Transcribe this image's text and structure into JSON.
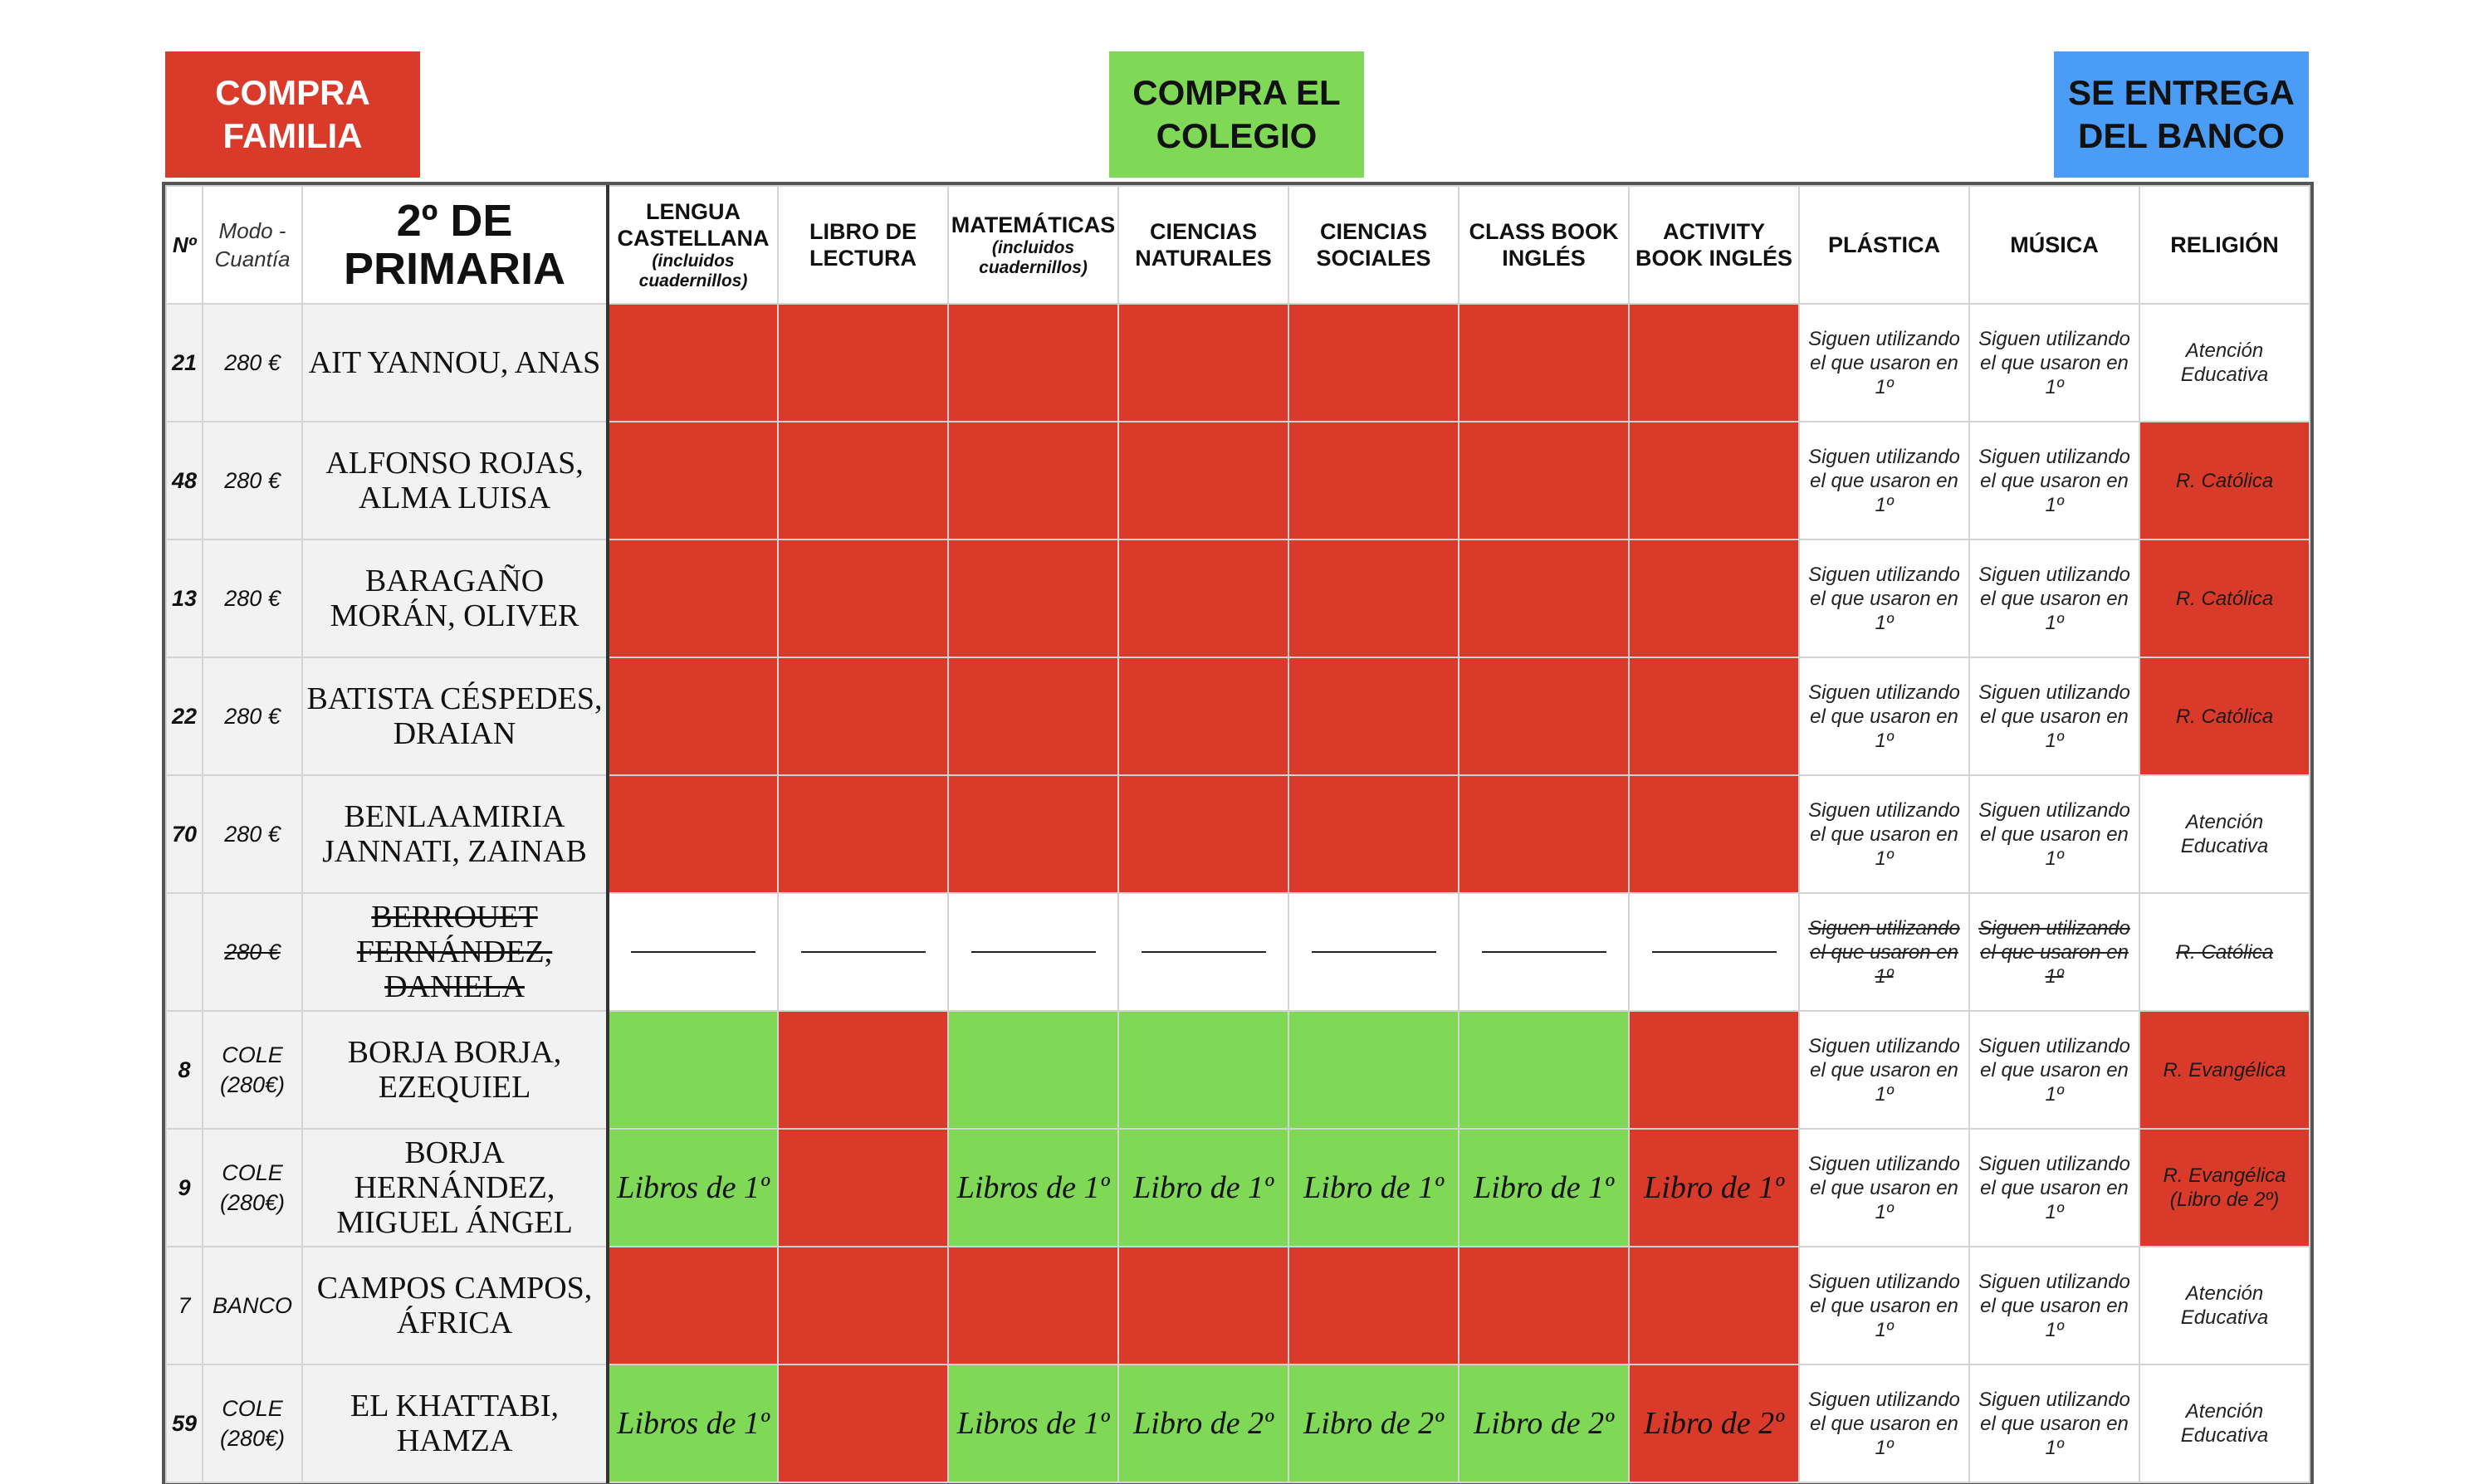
{
  "legend": {
    "familia": "COMPRA FAMILIA",
    "colegio": "COMPRA EL COLEGIO",
    "banco": "SE ENTREGA DEL BANCO"
  },
  "colors": {
    "familia": "#d93a29",
    "colegio": "#7fd957",
    "banco": "#4a9cf5"
  },
  "header": {
    "num": "Nº",
    "modo": "Modo - Cuantía",
    "title": "2º DE PRIMARIA",
    "subjects": [
      {
        "label": "LENGUA CASTELLANA",
        "sub": "(incluidos cuadernillos)"
      },
      {
        "label": "LIBRO DE LECTURA",
        "sub": ""
      },
      {
        "label": "MATEMÁTICAS",
        "sub": "(incluidos cuadernillos)"
      },
      {
        "label": "CIENCIAS NATURALES",
        "sub": ""
      },
      {
        "label": "CIENCIAS SOCIALES",
        "sub": ""
      },
      {
        "label": "CLASS BOOK INGLÉS",
        "sub": ""
      },
      {
        "label": "ACTIVITY BOOK INGLÉS",
        "sub": ""
      },
      {
        "label": "PLÁSTICA",
        "sub": ""
      },
      {
        "label": "MÚSICA",
        "sub": ""
      },
      {
        "label": "RELIGIÓN",
        "sub": ""
      }
    ]
  },
  "rows": [
    {
      "num": "21",
      "modo": "280 €",
      "name": "AIT YANNOU, ANAS",
      "books": [
        {
          "c": "r",
          "t": ""
        },
        {
          "c": "r",
          "t": ""
        },
        {
          "c": "r",
          "t": ""
        },
        {
          "c": "r",
          "t": ""
        },
        {
          "c": "r",
          "t": ""
        },
        {
          "c": "r",
          "t": ""
        },
        {
          "c": "r",
          "t": ""
        }
      ],
      "plastica": "Siguen utilizando el que usaron en 1º",
      "musica": "Siguen utilizando el que usaron en 1º",
      "religion": {
        "c": "w",
        "t": "Atención Educativa"
      }
    },
    {
      "num": "48",
      "modo": "280 €",
      "name": "ALFONSO ROJAS, ALMA LUISA",
      "books": [
        {
          "c": "r",
          "t": ""
        },
        {
          "c": "r",
          "t": ""
        },
        {
          "c": "r",
          "t": ""
        },
        {
          "c": "r",
          "t": ""
        },
        {
          "c": "r",
          "t": ""
        },
        {
          "c": "r",
          "t": ""
        },
        {
          "c": "r",
          "t": ""
        }
      ],
      "plastica": "Siguen utilizando el que usaron en 1º",
      "musica": "Siguen utilizando el que usaron en 1º",
      "religion": {
        "c": "r",
        "t": "R. Católica"
      }
    },
    {
      "num": "13",
      "modo": "280 €",
      "name": "BARAGAÑO MORÁN, OLIVER",
      "books": [
        {
          "c": "r",
          "t": ""
        },
        {
          "c": "r",
          "t": ""
        },
        {
          "c": "r",
          "t": ""
        },
        {
          "c": "r",
          "t": ""
        },
        {
          "c": "r",
          "t": ""
        },
        {
          "c": "r",
          "t": ""
        },
        {
          "c": "r",
          "t": ""
        }
      ],
      "plastica": "Siguen utilizando el que usaron en 1º",
      "musica": "Siguen utilizando el que usaron en 1º",
      "religion": {
        "c": "r",
        "t": "R. Católica"
      }
    },
    {
      "num": "22",
      "modo": "280 €",
      "name": "BATISTA CÉSPEDES, DRAIAN",
      "books": [
        {
          "c": "r",
          "t": ""
        },
        {
          "c": "r",
          "t": ""
        },
        {
          "c": "r",
          "t": ""
        },
        {
          "c": "r",
          "t": ""
        },
        {
          "c": "r",
          "t": ""
        },
        {
          "c": "r",
          "t": ""
        },
        {
          "c": "r",
          "t": ""
        }
      ],
      "plastica": "Siguen utilizando el que usaron en 1º",
      "musica": "Siguen utilizando el que usaron en 1º",
      "religion": {
        "c": "r",
        "t": "R. Católica"
      }
    },
    {
      "num": "70",
      "modo": "280 €",
      "name": "BENLAAMIRIA JANNATI, ZAINAB",
      "books": [
        {
          "c": "r",
          "t": ""
        },
        {
          "c": "r",
          "t": ""
        },
        {
          "c": "r",
          "t": ""
        },
        {
          "c": "r",
          "t": ""
        },
        {
          "c": "r",
          "t": ""
        },
        {
          "c": "r",
          "t": ""
        },
        {
          "c": "r",
          "t": ""
        }
      ],
      "plastica": "Siguen utilizando el que usaron en 1º",
      "musica": "Siguen utilizando el que usaron en 1º",
      "religion": {
        "c": "w",
        "t": "Atención Educativa"
      }
    },
    {
      "num": "",
      "modo": "280 €",
      "name": "BERROUET FERNÁNDEZ, DANIELA",
      "struck": true,
      "books": [
        {
          "c": "d",
          "t": ""
        },
        {
          "c": "d",
          "t": ""
        },
        {
          "c": "d",
          "t": ""
        },
        {
          "c": "d",
          "t": ""
        },
        {
          "c": "d",
          "t": ""
        },
        {
          "c": "d",
          "t": ""
        },
        {
          "c": "d",
          "t": ""
        }
      ],
      "plastica": "Siguen utilizando el que usaron en 1º",
      "musica": "Siguen utilizando el que usaron en 1º",
      "religion": {
        "c": "w",
        "t": "R. Católica"
      }
    },
    {
      "num": "8",
      "modo": "COLE (280€)",
      "name": "BORJA BORJA, EZEQUIEL",
      "books": [
        {
          "c": "g",
          "t": ""
        },
        {
          "c": "r",
          "t": ""
        },
        {
          "c": "g",
          "t": ""
        },
        {
          "c": "g",
          "t": ""
        },
        {
          "c": "g",
          "t": ""
        },
        {
          "c": "g",
          "t": ""
        },
        {
          "c": "r",
          "t": ""
        }
      ],
      "plastica": "Siguen utilizando el que usaron en 1º",
      "musica": "Siguen utilizando el que usaron en 1º",
      "religion": {
        "c": "r",
        "t": "R. Evangélica"
      }
    },
    {
      "num": "9",
      "modo": "COLE (280€)",
      "name": "BORJA HERNÁNDEZ, MIGUEL ÁNGEL",
      "books": [
        {
          "c": "g",
          "t": "Libros de 1º"
        },
        {
          "c": "r",
          "t": ""
        },
        {
          "c": "g",
          "t": "Libros de 1º"
        },
        {
          "c": "g",
          "t": "Libro de 1º"
        },
        {
          "c": "g",
          "t": "Libro de 1º"
        },
        {
          "c": "g",
          "t": "Libro de 1º"
        },
        {
          "c": "r",
          "t": "Libro de 1º"
        }
      ],
      "plastica": "Siguen utilizando el que usaron en 1º",
      "musica": "Siguen utilizando el que usaron en 1º",
      "religion": {
        "c": "r",
        "t": "R. Evangélica (Libro de 2º)"
      }
    },
    {
      "num": "7",
      "modo": "BANCO",
      "name": "CAMPOS CAMPOS, ÁFRICA",
      "plain": true,
      "books": [
        {
          "c": "r",
          "t": ""
        },
        {
          "c": "r",
          "t": ""
        },
        {
          "c": "r",
          "t": ""
        },
        {
          "c": "r",
          "t": ""
        },
        {
          "c": "r",
          "t": ""
        },
        {
          "c": "r",
          "t": ""
        },
        {
          "c": "r",
          "t": ""
        }
      ],
      "plastica": "Siguen utilizando el que usaron en 1º",
      "musica": "Siguen utilizando el que usaron en 1º",
      "religion": {
        "c": "w",
        "t": "Atención Educativa"
      }
    },
    {
      "num": "59",
      "modo": "COLE (280€)",
      "name": "EL KHATTABI, HAMZA",
      "books": [
        {
          "c": "g",
          "t": "Libros de 1º"
        },
        {
          "c": "r",
          "t": ""
        },
        {
          "c": "g",
          "t": "Libros de 1º"
        },
        {
          "c": "g",
          "t": "Libro de 2º"
        },
        {
          "c": "g",
          "t": "Libro de 2º"
        },
        {
          "c": "g",
          "t": "Libro de 2º"
        },
        {
          "c": "r",
          "t": "Libro de 2º"
        }
      ],
      "plastica": "Siguen utilizando el que usaron en 1º",
      "musica": "Siguen utilizando el que usaron en 1º",
      "religion": {
        "c": "w",
        "t": "Atención Educativa"
      }
    }
  ]
}
